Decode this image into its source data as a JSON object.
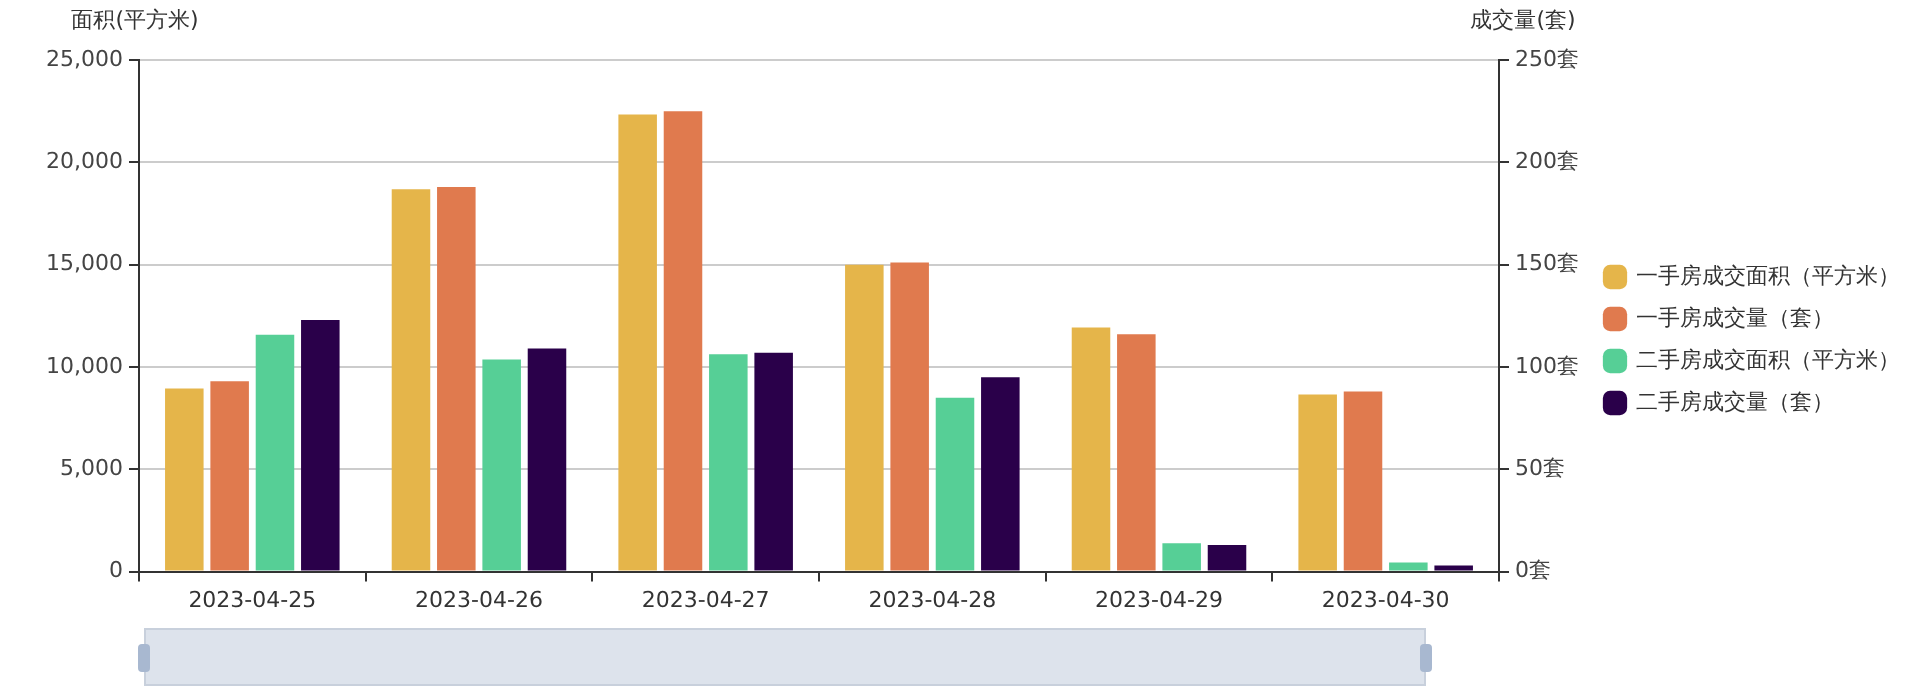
{
  "chart_data": {
    "type": "bar",
    "ylabel": "面积(平方米)",
    "y2label": "成交量(套)",
    "categories": [
      "2023-04-25",
      "2023-04-26",
      "2023-04-27",
      "2023-04-28",
      "2023-04-29",
      "2023-04-30"
    ],
    "series": [
      {
        "name": "一手房成交面积（平方米）",
        "color": "#e5b54a",
        "values": [
          8950,
          18690,
          22340,
          15000,
          11930,
          8650
        ]
      },
      {
        "name": "一手房成交量（套）",
        "color": "#e07a4e",
        "axis": "y2",
        "values": [
          93,
          188,
          225,
          151,
          116,
          88
        ]
      },
      {
        "name": "二手房成交面积（平方米）",
        "color": "#56cf96",
        "values": [
          11570,
          10360,
          10620,
          8500,
          1390,
          440
        ]
      },
      {
        "name": "二手房成交量（套）",
        "color": "#2a004a",
        "axis": "y2",
        "values": [
          123,
          109,
          107,
          95,
          13,
          3
        ]
      }
    ],
    "ylim": [
      0,
      25000
    ],
    "yticks": [
      {
        "value": 0,
        "label": "0"
      },
      {
        "value": 5000,
        "label": "5,000"
      },
      {
        "value": 10000,
        "label": "10,000"
      },
      {
        "value": 15000,
        "label": "15,000"
      },
      {
        "value": 20000,
        "label": "20,000"
      },
      {
        "value": 25000,
        "label": "25,000"
      }
    ],
    "y2lim": [
      0,
      250
    ],
    "y2ticks": [
      {
        "value": 0,
        "label": "0套"
      },
      {
        "value": 50,
        "label": "50套"
      },
      {
        "value": 100,
        "label": "100套"
      },
      {
        "value": 150,
        "label": "150套"
      },
      {
        "value": 200,
        "label": "200套"
      },
      {
        "value": 250,
        "label": "250套"
      }
    ],
    "grid": "y",
    "legend": "right"
  }
}
